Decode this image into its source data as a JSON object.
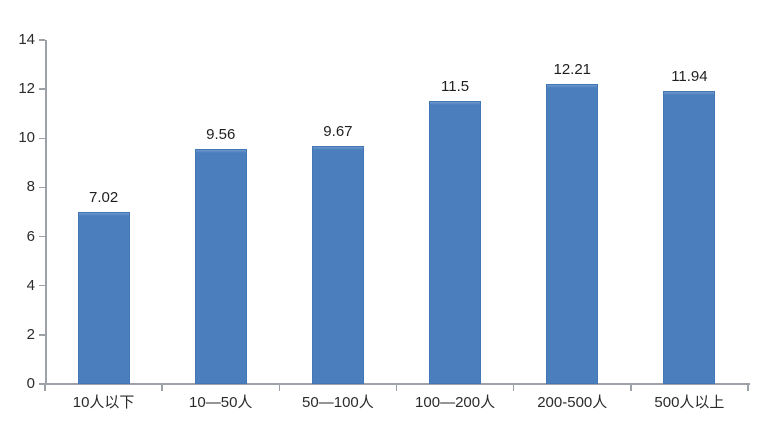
{
  "chart_data": {
    "type": "bar",
    "title": "",
    "xlabel": "",
    "ylabel": "",
    "categories": [
      "10人以下",
      "10—50人",
      "50—100人",
      "100—200人",
      "200-500人",
      "500人以上"
    ],
    "values": [
      7.02,
      9.56,
      9.67,
      11.5,
      12.21,
      11.94
    ],
    "data_labels": [
      "7.02",
      "9.56",
      "9.67",
      "11.5",
      "12.21",
      "11.94"
    ],
    "ylim": [
      0,
      14
    ],
    "ytick_step": 2,
    "ytick_labels": [
      "0",
      "2",
      "4",
      "6",
      "8",
      "10",
      "12",
      "14"
    ],
    "grid": false,
    "legend_position": "none",
    "colors": {
      "bar_fill": "#4a7ebd",
      "bar_fill_top_highlight": "#6b97cc",
      "bar_border": "#4276b5",
      "axis_line": "#9da2a8",
      "tick_label": "#2b2b2b",
      "data_label": "#1f1f1f",
      "background": "#ffffff"
    }
  }
}
